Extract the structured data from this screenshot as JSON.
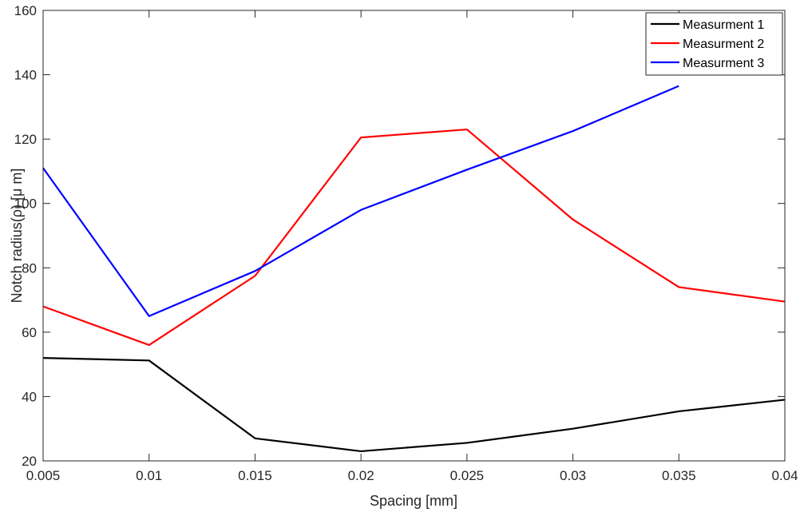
{
  "chart_data": {
    "type": "line",
    "title": "",
    "xlabel": "Spacing [mm]",
    "ylabel": "Notch radius(ρ) [μ m]",
    "xlim": [
      0.005,
      0.04
    ],
    "ylim": [
      20,
      160
    ],
    "x_ticks": [
      "0.005",
      "0.01",
      "0.015",
      "0.02",
      "0.025",
      "0.03",
      "0.035",
      "0.04"
    ],
    "y_ticks": [
      "20",
      "40",
      "60",
      "80",
      "100",
      "120",
      "140",
      "160"
    ],
    "grid": false,
    "legend_position": "top-right",
    "series": [
      {
        "name": "Measurment 1",
        "color": "#000000",
        "x": [
          0.005,
          0.01,
          0.015,
          0.02,
          0.025,
          0.03,
          0.035,
          0.04
        ],
        "y": [
          52,
          51.2,
          27,
          23,
          25.6,
          30,
          35.4,
          39
        ]
      },
      {
        "name": "Measurment 2",
        "color": "#ff0000",
        "x": [
          0.005,
          0.01,
          0.015,
          0.02,
          0.025,
          0.03,
          0.035,
          0.04
        ],
        "y": [
          68,
          56,
          77.5,
          120.5,
          123,
          95,
          74,
          69.5
        ]
      },
      {
        "name": "Measurment 3",
        "color": "#0000ff",
        "x": [
          0.005,
          0.01,
          0.015,
          0.02,
          0.025,
          0.03,
          0.035
        ],
        "y": [
          111,
          65,
          79,
          98,
          110.5,
          122.5,
          136.5
        ]
      }
    ]
  }
}
